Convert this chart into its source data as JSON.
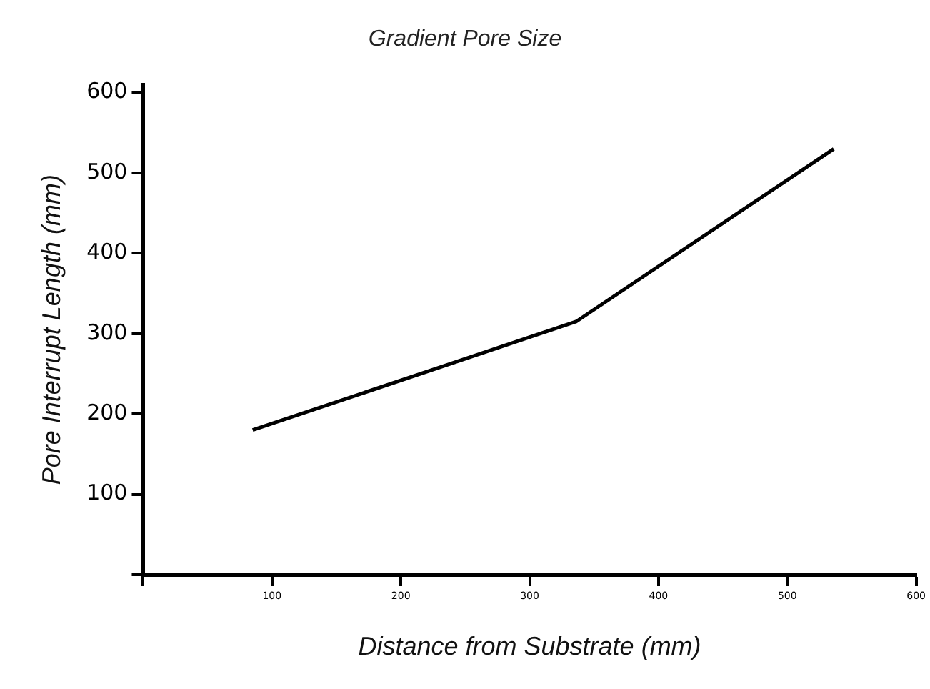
{
  "chart_data": {
    "type": "line",
    "title": "Gradient Pore Size",
    "xlabel": "Distance from Substrate (mm)",
    "ylabel": "Pore Interrupt Length (mm)",
    "x": [
      85,
      336,
      536
    ],
    "series": [
      {
        "color": "#000000",
        "values": [
          180,
          315,
          530
        ]
      }
    ],
    "xlim": [
      0,
      600
    ],
    "xticks": [
      {
        "value": 0,
        "label": null
      },
      100,
      200,
      300,
      400,
      500,
      600
    ],
    "ylim": [
      0,
      610
    ],
    "yticks": [
      {
        "value": 0,
        "label": null
      },
      100,
      200,
      300,
      400,
      500,
      600
    ],
    "grid": false,
    "legend": false,
    "marker": "none",
    "line_style": "solid"
  }
}
